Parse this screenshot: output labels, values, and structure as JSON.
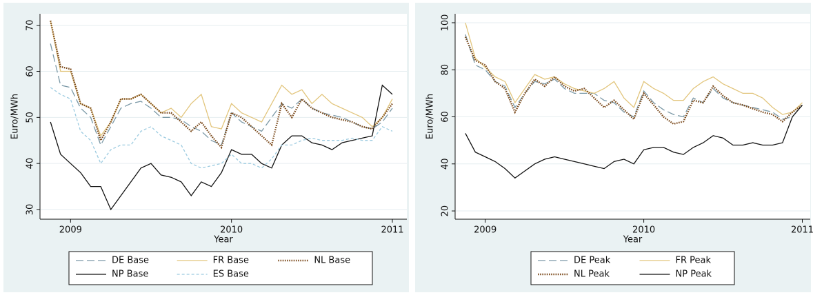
{
  "chart_data": [
    {
      "type": "line",
      "x_label": "Year",
      "y_label": "Euro/MWh",
      "x": [
        2008.875,
        2008.9375,
        2009.0,
        2009.0625,
        2009.125,
        2009.1875,
        2009.25,
        2009.3125,
        2009.375,
        2009.4375,
        2009.5,
        2009.5625,
        2009.625,
        2009.6875,
        2009.75,
        2009.8125,
        2009.875,
        2009.9375,
        2010.0,
        2010.0625,
        2010.125,
        2010.1875,
        2010.25,
        2010.3125,
        2010.375,
        2010.4375,
        2010.5,
        2010.5625,
        2010.625,
        2010.6875,
        2010.75,
        2010.8125,
        2010.875,
        2010.9375,
        2011.0
      ],
      "xlim": [
        2008.81,
        2011.09
      ],
      "ylim": [
        27.9,
        72.5
      ],
      "xticks": [
        2009,
        2010,
        2011
      ],
      "yticks": [
        30,
        40,
        50,
        60,
        70
      ],
      "grid": true,
      "legend_columns": 3,
      "series": [
        {
          "name": "DE Base",
          "color": "#7a98a6",
          "dash": "longdash",
          "values": [
            66,
            57,
            56.5,
            52,
            50,
            44,
            48,
            52,
            53,
            53.5,
            52,
            50,
            50,
            49.5,
            48,
            47,
            45,
            44,
            51,
            49,
            48,
            47,
            50,
            53,
            52,
            54,
            52,
            51,
            50.5,
            50,
            49,
            48,
            47.5,
            49,
            52
          ]
        },
        {
          "name": "FR Base",
          "color": "#e2c57c",
          "dash": "solid",
          "values": [
            71,
            60,
            60,
            53,
            52,
            46,
            49,
            54,
            54,
            55,
            53,
            51,
            52,
            50,
            53,
            55,
            48,
            47.5,
            53,
            51,
            50,
            49,
            53,
            57,
            55,
            56,
            53,
            55,
            53,
            52,
            51,
            50,
            48,
            50,
            54
          ]
        },
        {
          "name": "NL Base",
          "color": "#7b4a1c",
          "dash": "dot",
          "values": [
            71,
            61,
            60.5,
            53,
            52,
            45,
            49,
            54,
            54,
            55,
            53,
            51,
            51,
            49,
            47,
            49,
            46,
            43.5,
            51,
            50,
            48,
            46,
            44,
            53,
            50,
            54,
            52,
            51,
            50,
            49.5,
            49,
            48,
            47.5,
            50,
            53
          ]
        },
        {
          "name": "NP Base",
          "color": "#111111",
          "dash": "solid",
          "values": [
            49,
            42,
            40,
            38,
            35,
            35,
            30,
            33,
            36,
            39,
            40,
            37.5,
            37,
            36,
            33,
            36,
            35,
            38,
            43,
            42,
            42,
            40,
            39,
            44,
            46,
            46,
            44.5,
            44,
            43,
            44.5,
            45,
            45.5,
            46,
            57,
            55
          ]
        },
        {
          "name": "ES Base",
          "color": "#9ccbe0",
          "dash": "dash",
          "values": [
            56.5,
            55,
            54,
            47,
            45,
            40,
            43,
            44,
            44,
            47,
            48,
            46,
            45,
            44,
            40,
            39,
            39.5,
            40,
            42,
            40,
            40,
            39,
            41,
            44,
            44,
            45,
            45.5,
            45,
            45,
            45,
            45.5,
            45,
            45,
            48,
            47
          ]
        }
      ]
    },
    {
      "type": "line",
      "x_label": "Year",
      "y_label": "Euro/MWh",
      "x": [
        2008.875,
        2008.9375,
        2009.0,
        2009.0625,
        2009.125,
        2009.1875,
        2009.25,
        2009.3125,
        2009.375,
        2009.4375,
        2009.5,
        2009.5625,
        2009.625,
        2009.6875,
        2009.75,
        2009.8125,
        2009.875,
        2009.9375,
        2010.0,
        2010.0625,
        2010.125,
        2010.1875,
        2010.25,
        2010.3125,
        2010.375,
        2010.4375,
        2010.5,
        2010.5625,
        2010.625,
        2010.6875,
        2010.75,
        2010.8125,
        2010.875,
        2010.9375,
        2011.0
      ],
      "xlim": [
        2008.81,
        2011.05
      ],
      "ylim": [
        16.5,
        103.8
      ],
      "xticks": [
        2009,
        2010,
        2011
      ],
      "yticks": [
        20,
        40,
        60,
        80,
        100
      ],
      "grid": true,
      "legend_columns": 2,
      "series": [
        {
          "name": "DE Peak",
          "color": "#7a98a6",
          "dash": "longdash",
          "values": [
            95,
            82,
            80,
            75,
            73,
            64,
            70,
            75,
            74,
            76,
            72,
            70,
            70,
            70,
            67,
            66,
            62,
            60,
            71,
            66,
            63,
            61,
            60,
            68,
            66,
            72,
            68,
            66,
            65,
            64,
            63,
            62,
            59,
            60,
            65
          ]
        },
        {
          "name": "FR Peak",
          "color": "#e2c57c",
          "dash": "solid",
          "values": [
            100,
            85,
            81,
            77,
            75,
            66,
            72,
            78,
            76,
            77,
            74,
            72,
            71,
            70,
            72,
            75,
            68,
            64,
            75,
            72,
            70,
            67,
            67,
            72,
            75,
            77,
            74,
            72,
            70,
            70,
            68,
            64,
            61,
            62,
            66
          ]
        },
        {
          "name": "NL Peak",
          "color": "#7b4a1c",
          "dash": "dot",
          "values": [
            94,
            84,
            82,
            75,
            72,
            62,
            70,
            76,
            73,
            77,
            73,
            71,
            72,
            68,
            64,
            67,
            63,
            59,
            70,
            65,
            60,
            57,
            58,
            67,
            66,
            73,
            69,
            66,
            65,
            63.5,
            62,
            61,
            58,
            62,
            65
          ]
        },
        {
          "name": "NP Peak",
          "color": "#111111",
          "dash": "solid",
          "values": [
            53,
            45,
            43,
            41,
            38,
            34,
            37,
            40,
            42,
            43,
            42,
            41,
            40,
            39,
            38,
            41,
            42,
            40,
            46,
            47,
            47,
            45,
            44,
            47,
            49,
            52,
            51,
            48,
            48,
            49,
            48,
            48,
            49,
            60,
            65
          ]
        }
      ]
    }
  ]
}
